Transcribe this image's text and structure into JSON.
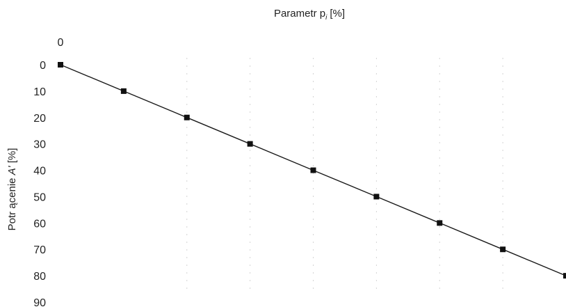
{
  "chart_data": {
    "type": "line",
    "title": "Parametr p",
    "title_subscript": "i",
    "title_unit": "[%]",
    "xlabel": "",
    "ylabel_prefix": "Potr ącenie ",
    "ylabel_symbol": "A'",
    "ylabel_unit": " [%]",
    "x_axis_position": "top",
    "x_tick_labels": [
      "0"
    ],
    "y_tick_labels": [
      "0",
      "10",
      "20",
      "30",
      "40",
      "50",
      "60",
      "70",
      "80",
      "90"
    ],
    "y_ticks": [
      0,
      10,
      20,
      30,
      40,
      50,
      60,
      70,
      80,
      90
    ],
    "ylim": [
      0,
      90
    ],
    "y_inverted": true,
    "xlim": [
      0,
      8
    ],
    "grid": true,
    "legend": "none",
    "series": [
      {
        "x": [
          0,
          1,
          2,
          3,
          4,
          5,
          6,
          7,
          8
        ],
        "y": [
          0,
          10,
          20,
          30,
          40,
          50,
          60,
          70,
          80
        ]
      }
    ],
    "colors": {
      "line": "#1a1a1a",
      "marker": "#111111",
      "grid": "#d4d4d4"
    }
  }
}
